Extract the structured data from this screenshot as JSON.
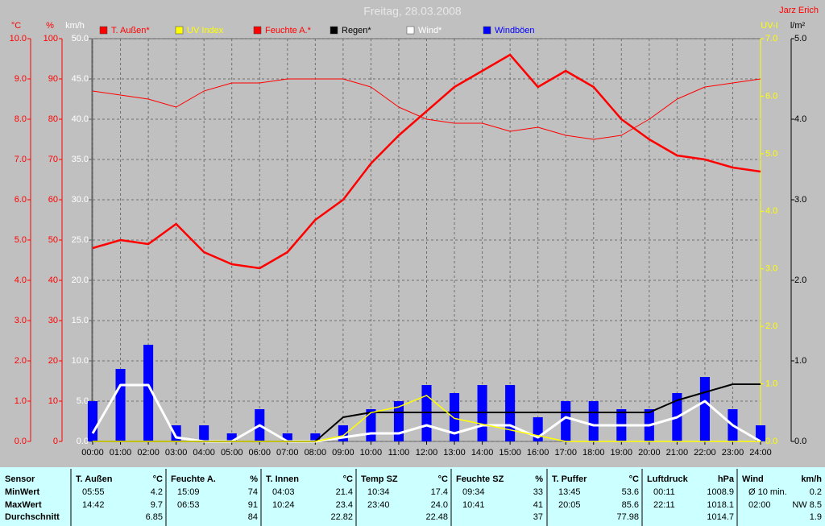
{
  "chart_data": {
    "type": "line",
    "title": "Freitag, 28.03.2008",
    "author": "Jarz Erich",
    "grid": true,
    "x": [
      0,
      1,
      2,
      3,
      4,
      5,
      6,
      7,
      8,
      9,
      10,
      11,
      12,
      13,
      14,
      15,
      16,
      17,
      18,
      19,
      20,
      21,
      22,
      23,
      24
    ],
    "xlim": [
      0,
      24
    ],
    "xticks": [
      {
        "value": 0,
        "label": "00:00"
      },
      {
        "value": 1,
        "label": "01:00"
      },
      {
        "value": 2,
        "label": "02:00"
      },
      {
        "value": 3,
        "label": "03:00"
      },
      {
        "value": 4,
        "label": "04:00"
      },
      {
        "value": 5,
        "label": "05:00"
      },
      {
        "value": 6,
        "label": "06:00"
      },
      {
        "value": 7,
        "label": "07:00"
      },
      {
        "value": 8,
        "label": "08:00"
      },
      {
        "value": 9,
        "label": "09:00"
      },
      {
        "value": 10,
        "label": "10:00"
      },
      {
        "value": 11,
        "label": "11:00"
      },
      {
        "value": 12,
        "label": "12:00"
      },
      {
        "value": 13,
        "label": "13:00"
      },
      {
        "value": 14,
        "label": "14:00"
      },
      {
        "value": 15,
        "label": "15:00"
      },
      {
        "value": 16,
        "label": "16:00"
      },
      {
        "value": 17,
        "label": "17:00"
      },
      {
        "value": 18,
        "label": "18:00"
      },
      {
        "value": 19,
        "label": "19:00"
      },
      {
        "value": 20,
        "label": "20:00"
      },
      {
        "value": 21,
        "label": "21:00"
      },
      {
        "value": 22,
        "label": "22:00"
      },
      {
        "value": 23,
        "label": "23:00"
      },
      {
        "value": 24,
        "label": "24:00"
      }
    ],
    "axes": [
      {
        "label": "°C",
        "color": "#ff0000",
        "lim": [
          0,
          10
        ],
        "ticks": [
          {
            "value": 0,
            "label": "0.0"
          },
          {
            "value": 1,
            "label": "1.0"
          },
          {
            "value": 2,
            "label": "2.0"
          },
          {
            "value": 3,
            "label": "3.0"
          },
          {
            "value": 4,
            "label": "4.0"
          },
          {
            "value": 5,
            "label": "5.0"
          },
          {
            "value": 6,
            "label": "6.0"
          },
          {
            "value": 7,
            "label": "7.0"
          },
          {
            "value": 8,
            "label": "8.0"
          },
          {
            "value": 9,
            "label": "9.0"
          },
          {
            "value": 10,
            "label": "10.0"
          }
        ]
      },
      {
        "label": "%",
        "color": "#ff0000",
        "lim": [
          0,
          100
        ],
        "ticks": [
          0,
          10,
          20,
          30,
          40,
          50,
          60,
          70,
          80,
          90,
          100
        ]
      },
      {
        "label": "km/h",
        "color": "#ffffff",
        "lim": [
          0,
          50
        ],
        "ticks": [
          {
            "value": 0,
            "label": "0.0"
          },
          {
            "value": 5,
            "label": "5.0"
          },
          {
            "value": 10,
            "label": "10.0"
          },
          {
            "value": 15,
            "label": "15.0"
          },
          {
            "value": 20,
            "label": "20.0"
          },
          {
            "value": 25,
            "label": "25.0"
          },
          {
            "value": 30,
            "label": "30.0"
          },
          {
            "value": 35,
            "label": "35.0"
          },
          {
            "value": 40,
            "label": "40.0"
          },
          {
            "value": 45,
            "label": "45.0"
          },
          {
            "value": 50,
            "label": "50.0"
          }
        ]
      },
      {
        "label": "UV-I",
        "color": "#ffff00",
        "lim": [
          0,
          7
        ],
        "ticks": [
          {
            "value": 0,
            "label": "0.0"
          },
          {
            "value": 1,
            "label": "1.0"
          },
          {
            "value": 2,
            "label": "2.0"
          },
          {
            "value": 3,
            "label": "3.0"
          },
          {
            "value": 4,
            "label": "4.0"
          },
          {
            "value": 5,
            "label": "5.0"
          },
          {
            "value": 6,
            "label": "6.0"
          },
          {
            "value": 7,
            "label": "7.0"
          }
        ]
      },
      {
        "label": "l/m²",
        "color": "#000000",
        "lim": [
          0,
          5
        ],
        "ticks": [
          {
            "value": 0,
            "label": "0.0"
          },
          {
            "value": 1,
            "label": "1.0"
          },
          {
            "value": 2,
            "label": "2.0"
          },
          {
            "value": 3,
            "label": "3.0"
          },
          {
            "value": 4,
            "label": "4.0"
          },
          {
            "value": 5,
            "label": "5.0"
          }
        ]
      }
    ],
    "series": [
      {
        "name": "T. Außen*",
        "color": "#ff0000",
        "axis": 0,
        "width": 2.5,
        "values": [
          4.8,
          5.0,
          4.9,
          5.4,
          4.7,
          4.4,
          4.3,
          4.7,
          5.5,
          6.0,
          6.9,
          7.6,
          8.2,
          8.8,
          9.2,
          9.6,
          8.8,
          9.2,
          8.8,
          8.0,
          7.5,
          7.1,
          7.0,
          6.8,
          6.7
        ]
      },
      {
        "name": "UV Index",
        "color": "#ffff00",
        "axis": 3,
        "width": 1.5,
        "values": [
          0,
          0,
          0,
          0,
          0,
          0,
          0,
          0,
          0,
          0.1,
          0.5,
          0.6,
          0.8,
          0.4,
          0.3,
          0.2,
          0.1,
          0,
          0,
          0,
          0,
          0,
          0,
          0,
          0
        ]
      },
      {
        "name": "Feuchte A.*",
        "color": "#ff0000",
        "axis": 1,
        "width": 1,
        "values": [
          87,
          86,
          85,
          83,
          87,
          89,
          89,
          90,
          90,
          90,
          88,
          83,
          80,
          79,
          79,
          77,
          78,
          76,
          75,
          76,
          80,
          85,
          88,
          89,
          90
        ]
      },
      {
        "name": "Regen*",
        "color": "#000000",
        "axis": 4,
        "width": 2,
        "values": [
          0,
          0,
          0,
          0,
          0,
          0,
          0,
          0,
          0,
          0.3,
          0.36,
          0.36,
          0.36,
          0.36,
          0.36,
          0.36,
          0.36,
          0.36,
          0.36,
          0.36,
          0.36,
          0.51,
          0.61,
          0.71,
          0.71
        ]
      },
      {
        "name": "Wind*",
        "color": "#ffffff",
        "axis": 2,
        "width": 3,
        "values": [
          1,
          7,
          7,
          0.5,
          0,
          0,
          2,
          0,
          0,
          0.5,
          1,
          1,
          2,
          1,
          2,
          2,
          0.5,
          3,
          2,
          2,
          2,
          3,
          5,
          2,
          0
        ]
      },
      {
        "name": "Windböen",
        "color": "#0000ff",
        "axis": 2,
        "style": "bar",
        "values": [
          5,
          9,
          12,
          2,
          2,
          1,
          4,
          1,
          1,
          2,
          4,
          5,
          7,
          6,
          7,
          7,
          3,
          5,
          5,
          4,
          4,
          6,
          8,
          4,
          2
        ]
      }
    ]
  },
  "table": {
    "row_labels": [
      "Sensor",
      "MinWert",
      "MaxWert",
      "Durchschnitt"
    ],
    "groups": [
      {
        "name": "T. Außen",
        "unit": "°C",
        "min": [
          "05:55",
          "4.2"
        ],
        "max": [
          "14:42",
          "9.7"
        ],
        "avg": "6.85"
      },
      {
        "name": "Feuchte A.",
        "unit": "%",
        "min": [
          "15:09",
          "74"
        ],
        "max": [
          "06:53",
          "91"
        ],
        "avg": "84"
      },
      {
        "name": "T. Innen",
        "unit": "°C",
        "min": [
          "04:03",
          "21.4"
        ],
        "max": [
          "10:24",
          "23.4"
        ],
        "avg": "22.82"
      },
      {
        "name": "Temp SZ",
        "unit": "°C",
        "min": [
          "10:34",
          "17.4"
        ],
        "max": [
          "23:40",
          "24.0"
        ],
        "avg": "22.48"
      },
      {
        "name": "Feuchte SZ",
        "unit": "%",
        "min": [
          "09:34",
          "33"
        ],
        "max": [
          "10:41",
          "41"
        ],
        "avg": "37"
      },
      {
        "name": "T. Puffer",
        "unit": "°C",
        "min": [
          "13:45",
          "53.6"
        ],
        "max": [
          "20:05",
          "85.6"
        ],
        "avg": "77.98"
      },
      {
        "name": "Luftdruck",
        "unit": "hPa",
        "min": [
          "00:11",
          "1008.9"
        ],
        "max": [
          "22:11",
          "1018.1"
        ],
        "avg": "1014.7"
      },
      {
        "name": "Wind",
        "unit": "km/h",
        "min": [
          "Ø 10 min.",
          "0.2"
        ],
        "max": [
          "02:00",
          "NW 8.5"
        ],
        "avg": "1.9"
      }
    ]
  }
}
